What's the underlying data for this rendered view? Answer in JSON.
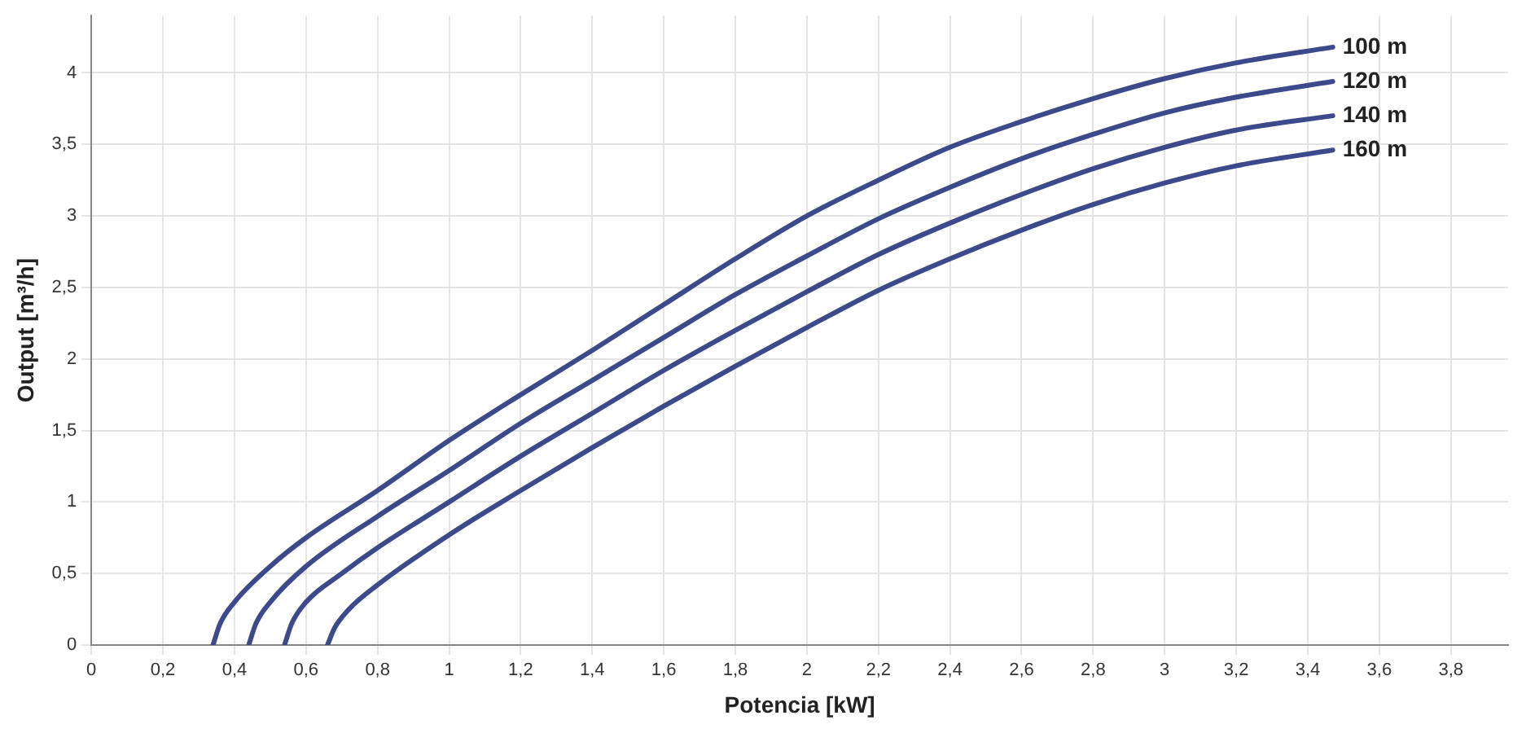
{
  "chart_data": {
    "type": "line",
    "xlabel": "Potencia [kW]",
    "ylabel": "Output [m³/h]",
    "xlim": [
      0,
      3.96
    ],
    "ylim": [
      0,
      4.4
    ],
    "xticks": [
      0,
      {
        "value": 0.2,
        "label": "0,2"
      },
      {
        "value": 0.4,
        "label": "0,4"
      },
      {
        "value": 0.6,
        "label": "0,6"
      },
      {
        "value": 0.8,
        "label": "0,8"
      },
      1,
      {
        "value": 1.2,
        "label": "1,2"
      },
      {
        "value": 1.4,
        "label": "1,4"
      },
      {
        "value": 1.6,
        "label": "1,6"
      },
      {
        "value": 1.8,
        "label": "1,8"
      },
      2,
      {
        "value": 2.2,
        "label": "2,2"
      },
      {
        "value": 2.4,
        "label": "2,4"
      },
      {
        "value": 2.6,
        "label": "2,6"
      },
      {
        "value": 2.8,
        "label": "2,8"
      },
      3,
      {
        "value": 3.2,
        "label": "3,2"
      },
      {
        "value": 3.4,
        "label": "3,4"
      },
      {
        "value": 3.6,
        "label": "3,6"
      },
      {
        "value": 3.8,
        "label": "3,8"
      }
    ],
    "yticks": [
      0,
      {
        "value": 0.5,
        "label": "0,5"
      },
      1,
      {
        "value": 1.5,
        "label": "1,5"
      },
      2,
      {
        "value": 2.5,
        "label": "2,5"
      },
      3,
      {
        "value": 3.5,
        "label": "3,5"
      },
      4
    ],
    "grid": true,
    "legend": false,
    "marker": "none",
    "line_style": "solid",
    "series": [
      {
        "name": "100 m",
        "color": "#3c4a8c",
        "x": [
          0.34,
          0.36,
          0.4,
          0.5,
          0.6,
          0.8,
          1,
          1.2,
          1.4,
          1.6,
          1.8,
          2,
          2.2,
          2.4,
          2.6,
          2.8,
          3,
          3.2,
          3.47
        ],
        "values": [
          0,
          0.15,
          0.3,
          0.55,
          0.75,
          1.08,
          1.43,
          1.75,
          2.06,
          2.38,
          2.7,
          3.0,
          3.25,
          3.48,
          3.66,
          3.82,
          3.96,
          4.07,
          4.18
        ]
      },
      {
        "name": "120 m",
        "color": "#3c4a8c",
        "x": [
          0.44,
          0.46,
          0.5,
          0.6,
          0.8,
          1,
          1.2,
          1.4,
          1.6,
          1.8,
          2,
          2.2,
          2.4,
          2.6,
          2.8,
          3,
          3.2,
          3.47
        ],
        "values": [
          0,
          0.15,
          0.3,
          0.55,
          0.9,
          1.22,
          1.55,
          1.85,
          2.15,
          2.45,
          2.72,
          2.98,
          3.2,
          3.4,
          3.57,
          3.72,
          3.83,
          3.94
        ]
      },
      {
        "name": "140 m",
        "color": "#3c4a8c",
        "x": [
          0.54,
          0.56,
          0.6,
          0.7,
          0.8,
          1,
          1.2,
          1.4,
          1.6,
          1.8,
          2,
          2.2,
          2.4,
          2.6,
          2.8,
          3,
          3.2,
          3.47
        ],
        "values": [
          0,
          0.15,
          0.3,
          0.5,
          0.68,
          1.0,
          1.32,
          1.62,
          1.92,
          2.2,
          2.47,
          2.73,
          2.95,
          3.15,
          3.33,
          3.48,
          3.6,
          3.7
        ]
      },
      {
        "name": "160 m",
        "color": "#3c4a8c",
        "x": [
          0.66,
          0.68,
          0.72,
          0.8,
          1,
          1.2,
          1.4,
          1.6,
          1.8,
          2,
          2.2,
          2.4,
          2.6,
          2.8,
          3,
          3.2,
          3.47
        ],
        "values": [
          0,
          0.12,
          0.25,
          0.42,
          0.77,
          1.08,
          1.38,
          1.67,
          1.95,
          2.22,
          2.48,
          2.7,
          2.9,
          3.08,
          3.23,
          3.35,
          3.46
        ]
      }
    ]
  }
}
